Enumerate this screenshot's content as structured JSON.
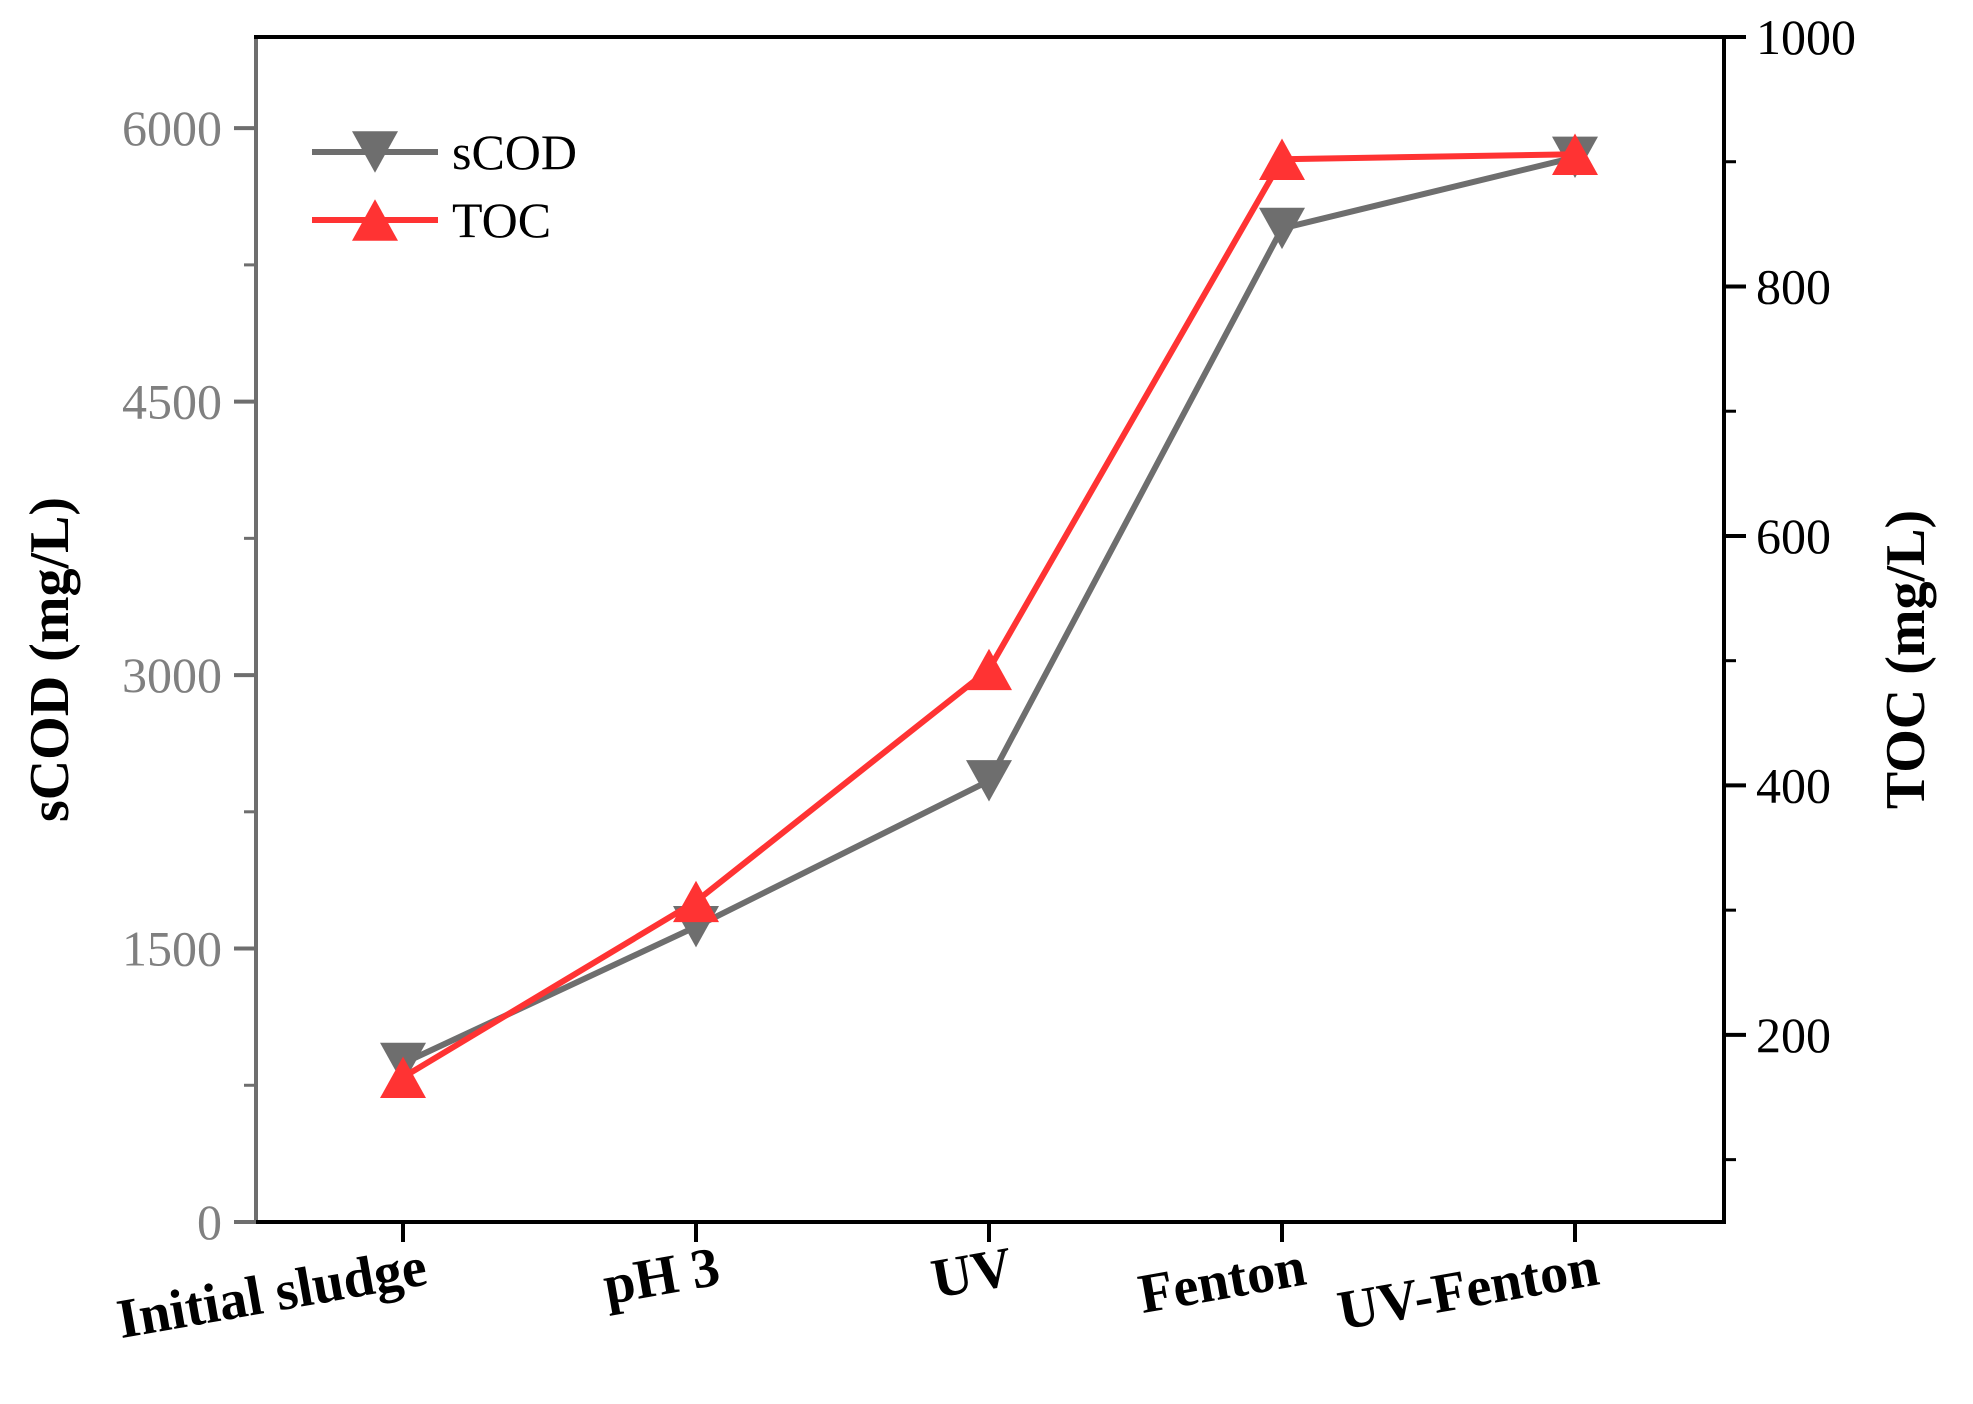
{
  "chart_data": {
    "type": "line",
    "categories": [
      "Initial sludge",
      "pH 3",
      "UV",
      "Fenton",
      "UV-Fenton"
    ],
    "series": [
      {
        "name": "sCOD",
        "axis": "left",
        "color": "#6e6e6e",
        "marker": "triangle-down",
        "values": [
          870,
          1620,
          2420,
          5450,
          5840
        ]
      },
      {
        "name": "TOC",
        "axis": "right",
        "color": "#ff3333",
        "marker": "triangle-up",
        "values": [
          166,
          307,
          493,
          902,
          906
        ]
      }
    ],
    "y_left": {
      "label": "sCOD (mg/L)",
      "range": [
        0,
        6500
      ],
      "major_ticks": [
        0,
        1500,
        3000,
        4500,
        6000
      ],
      "minor_ticks": [
        750,
        2250,
        3750,
        5250
      ],
      "tick_labels": [
        "0",
        "1500",
        "3000",
        "4500",
        "6000"
      ]
    },
    "y_right": {
      "label": "TOC (mg/L)",
      "range": [
        50,
        1000
      ],
      "major_ticks": [
        200,
        400,
        600,
        800,
        1000
      ],
      "minor_ticks": [
        100,
        300,
        500,
        700,
        900
      ],
      "tick_labels": [
        "200",
        "400",
        "600",
        "800",
        "1000"
      ]
    },
    "legend": {
      "position": "top-left",
      "entries": [
        "sCOD",
        "TOC"
      ]
    },
    "grid": false,
    "title": ""
  }
}
